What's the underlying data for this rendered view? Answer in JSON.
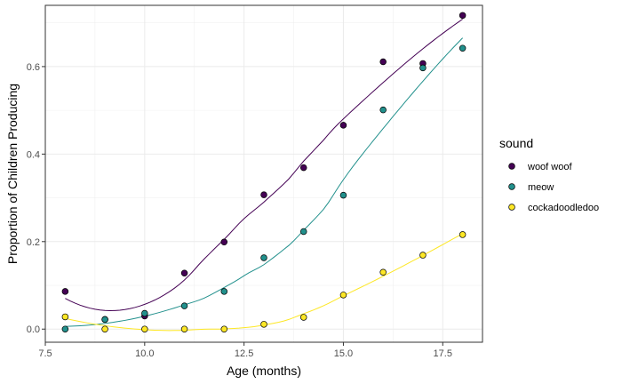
{
  "chart_data": {
    "type": "scatter",
    "title": "",
    "xlabel": "Age (months)",
    "ylabel": "Proportion of Children Producing",
    "xlim": [
      7.5,
      18.5
    ],
    "ylim": [
      -0.03,
      0.74
    ],
    "x_ticks": [
      7.5,
      10.0,
      12.5,
      15.0,
      17.5
    ],
    "x_tick_labels": [
      "7.5",
      "10.0",
      "12.5",
      "15.0",
      "17.5"
    ],
    "y_ticks": [
      0.0,
      0.2,
      0.4,
      0.6
    ],
    "y_tick_labels": [
      "0.0",
      "0.2",
      "0.4",
      "0.6"
    ],
    "grid": true,
    "smooth_lines": true,
    "legend": {
      "title": "sound",
      "position": "right"
    },
    "x": [
      8,
      9,
      10,
      11,
      12,
      13,
      14,
      15,
      16,
      17,
      18
    ],
    "series": [
      {
        "name": "woof woof",
        "color": "#440154",
        "values": [
          0.086,
          0.022,
          0.03,
          0.128,
          0.199,
          0.307,
          0.369,
          0.466,
          0.611,
          0.607,
          0.717
        ]
      },
      {
        "name": "meow",
        "color": "#21908C",
        "values": [
          0.0,
          0.022,
          0.036,
          0.053,
          0.086,
          0.163,
          0.223,
          0.306,
          0.501,
          0.597,
          0.642
        ]
      },
      {
        "name": "cockadoodledoo",
        "color": "#FDE725",
        "values": [
          0.028,
          0.0,
          0.0,
          0.0,
          0.0,
          0.011,
          0.027,
          0.078,
          0.13,
          0.169,
          0.216
        ]
      }
    ]
  }
}
